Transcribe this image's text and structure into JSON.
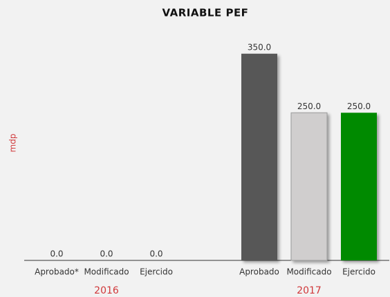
{
  "chart_data": {
    "type": "bar",
    "title": "VARIABLE PEF",
    "y_label": "mdp",
    "groups": [
      {
        "name": "2016",
        "categories": [
          "Aprobado*",
          "Modificado",
          "Ejercido"
        ],
        "values": [
          0,
          0,
          0
        ],
        "value_labels": [
          "0.0",
          "0.0",
          "0.0"
        ],
        "colors": [
          "#575757",
          "#d0cece",
          "#008a00"
        ]
      },
      {
        "name": "2017",
        "categories": [
          "Aprobado",
          "Modificado",
          "Ejercido"
        ],
        "values": [
          350,
          250,
          250
        ],
        "value_labels": [
          "350.0",
          "250.0",
          "250.0"
        ],
        "colors": [
          "#575757",
          "#d0cece",
          "#008a00"
        ]
      }
    ],
    "ylim": [
      0,
      400
    ]
  }
}
